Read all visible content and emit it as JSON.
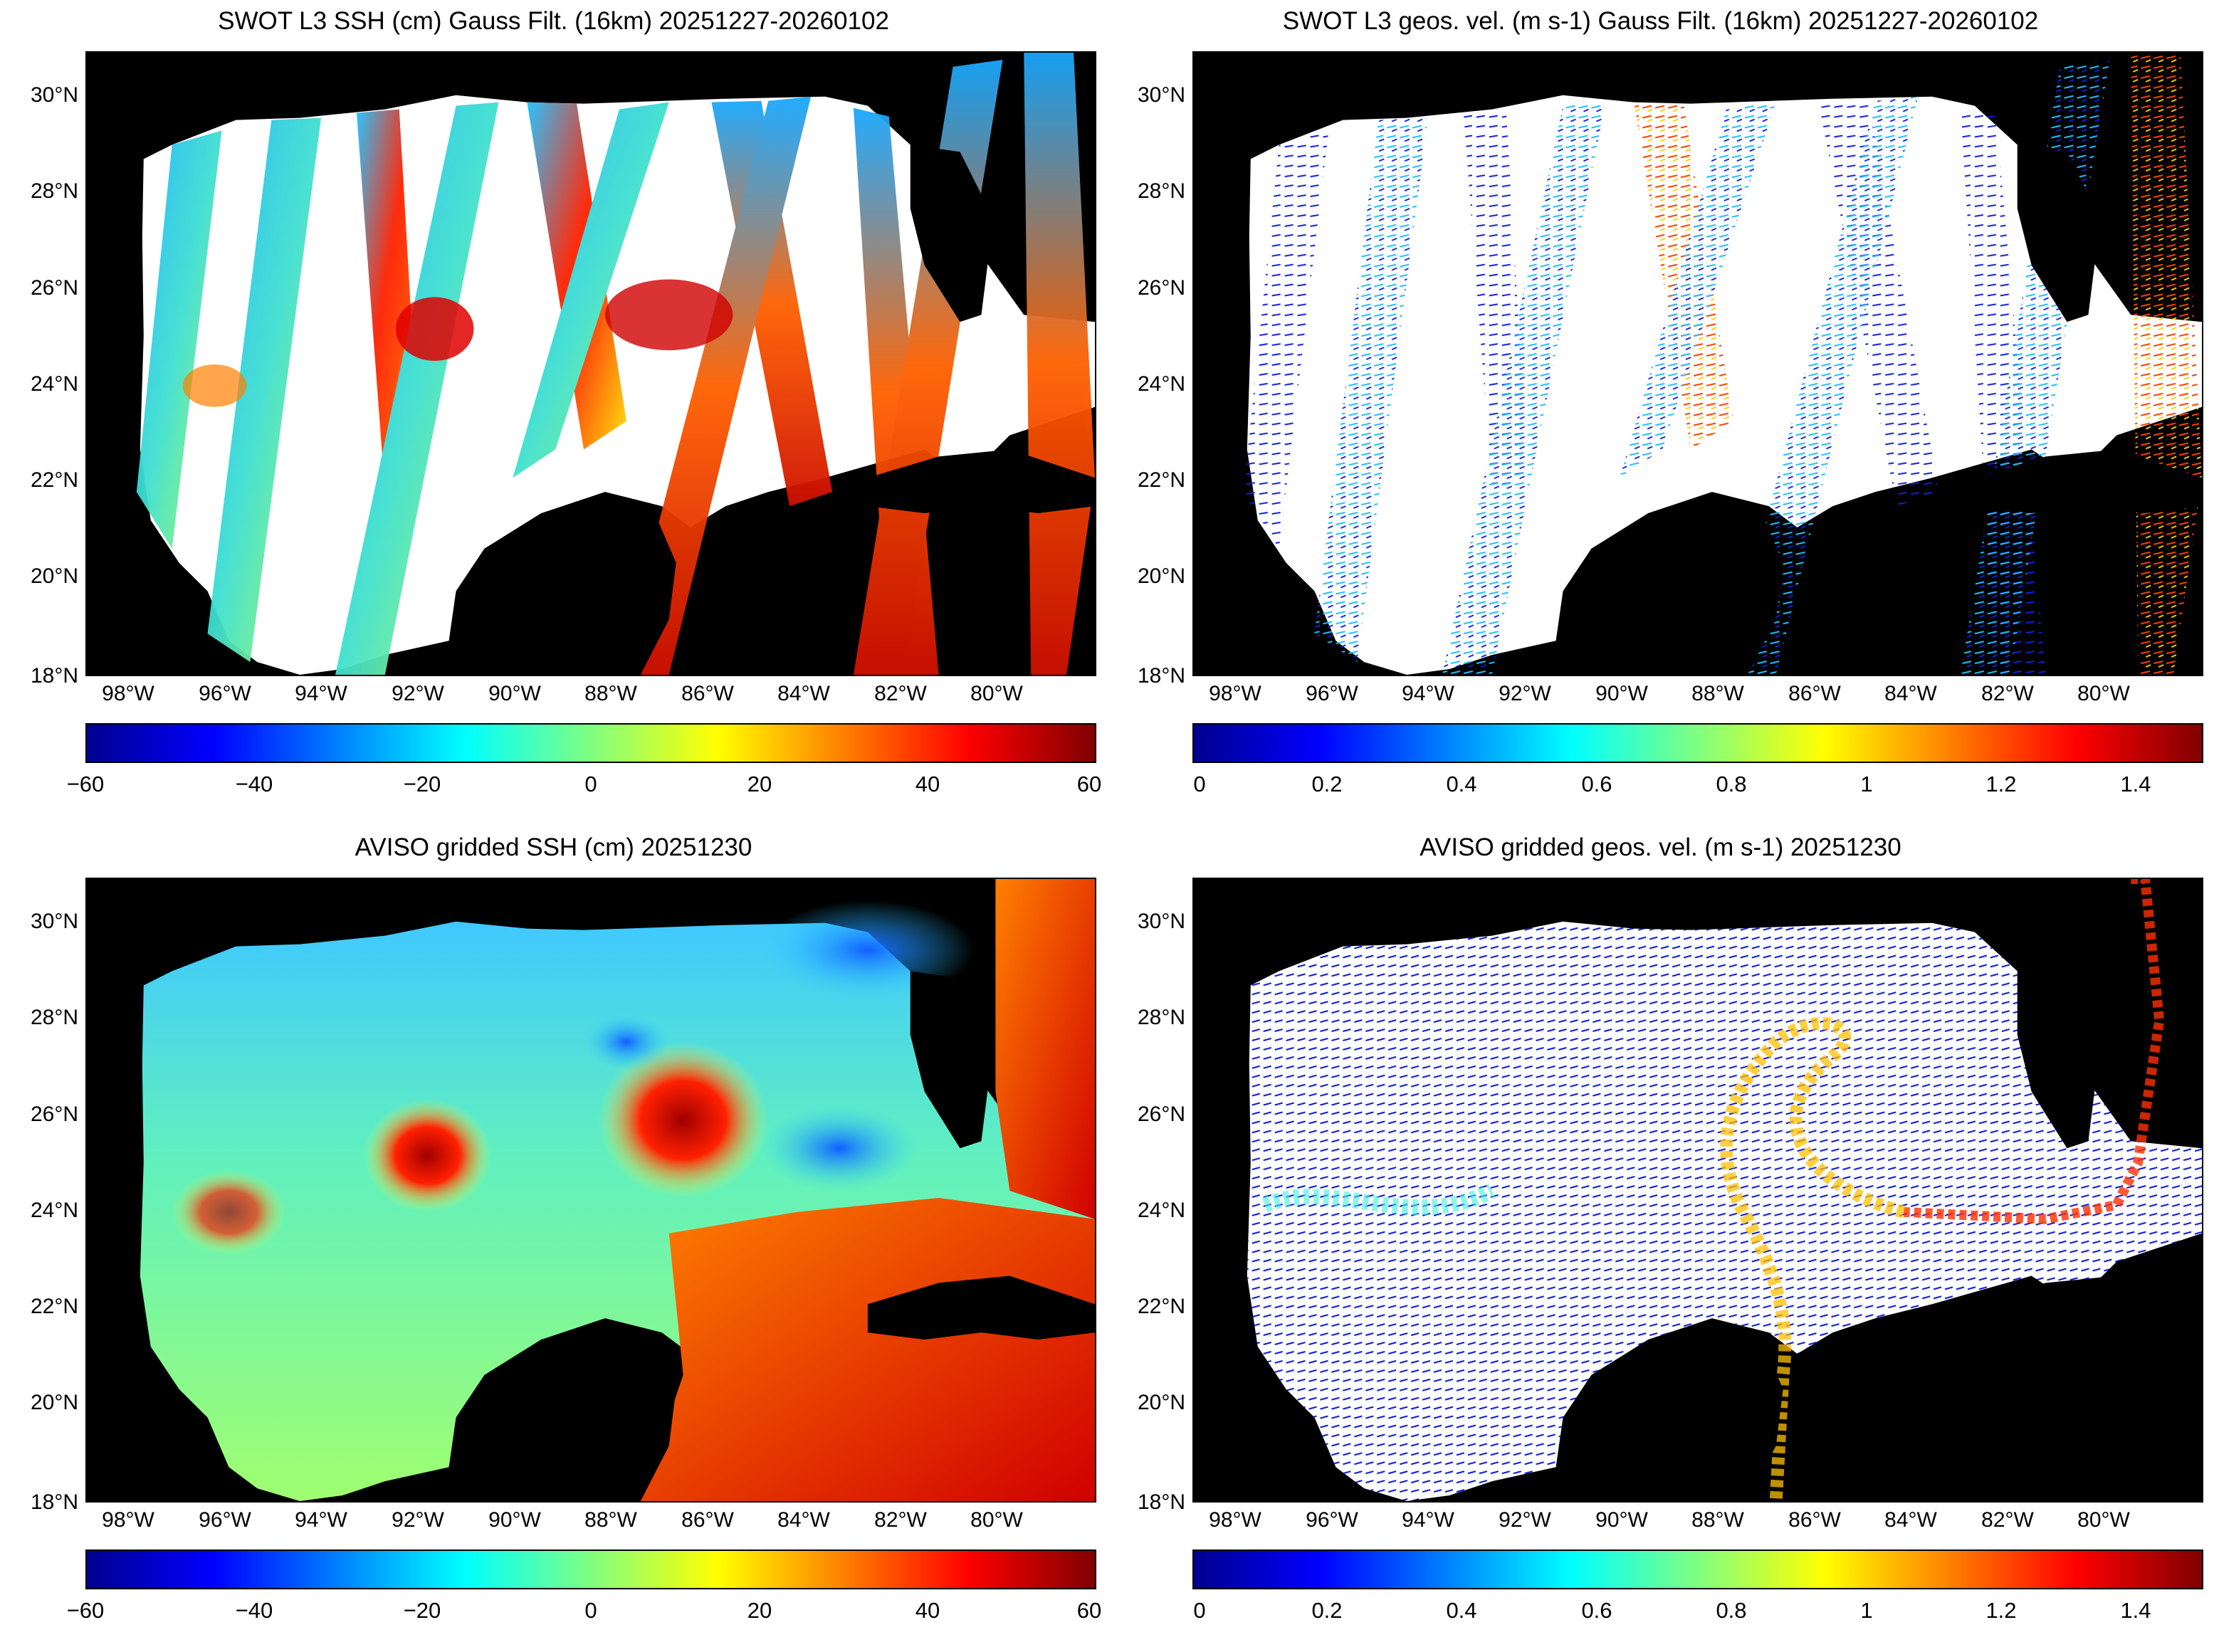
{
  "panels": [
    {
      "title": "SWOT L3 SSH (cm) Gauss Filt. (16km) 20251227-20260102",
      "colorbar_ticks": [
        "−60",
        "−40",
        "−20",
        "0",
        "20",
        "40",
        "60"
      ]
    },
    {
      "title": "SWOT L3 geos. vel. (m s-1) Gauss Filt. (16km) 20251227-20260102",
      "colorbar_ticks": [
        "0",
        "0.2",
        "0.4",
        "0.6",
        "0.8",
        "1",
        "1.2",
        "1.4"
      ]
    },
    {
      "title": "AVISO gridded SSH (cm) 20251230",
      "colorbar_ticks": [
        "−60",
        "−40",
        "−20",
        "0",
        "20",
        "40",
        "60"
      ]
    },
    {
      "title": "AVISO gridded geos. vel. (m s-1)  20251230",
      "colorbar_ticks": [
        "0",
        "0.2",
        "0.4",
        "0.6",
        "0.8",
        "1",
        "1.2",
        "1.4"
      ]
    }
  ],
  "axes": {
    "lat_labels": [
      "30°N",
      "28°N",
      "26°N",
      "24°N",
      "22°N",
      "20°N",
      "18°N"
    ],
    "lon_labels": [
      "98°W",
      "96°W",
      "94°W",
      "92°W",
      "90°W",
      "88°W",
      "86°W",
      "84°W",
      "82°W",
      "80°W"
    ],
    "lat_range": [
      18,
      31
    ],
    "lon_range": [
      -99.8,
      -77.8
    ]
  },
  "colors": {
    "land": "#000000",
    "no_data": "#ffffff",
    "colormap": "jet"
  }
}
